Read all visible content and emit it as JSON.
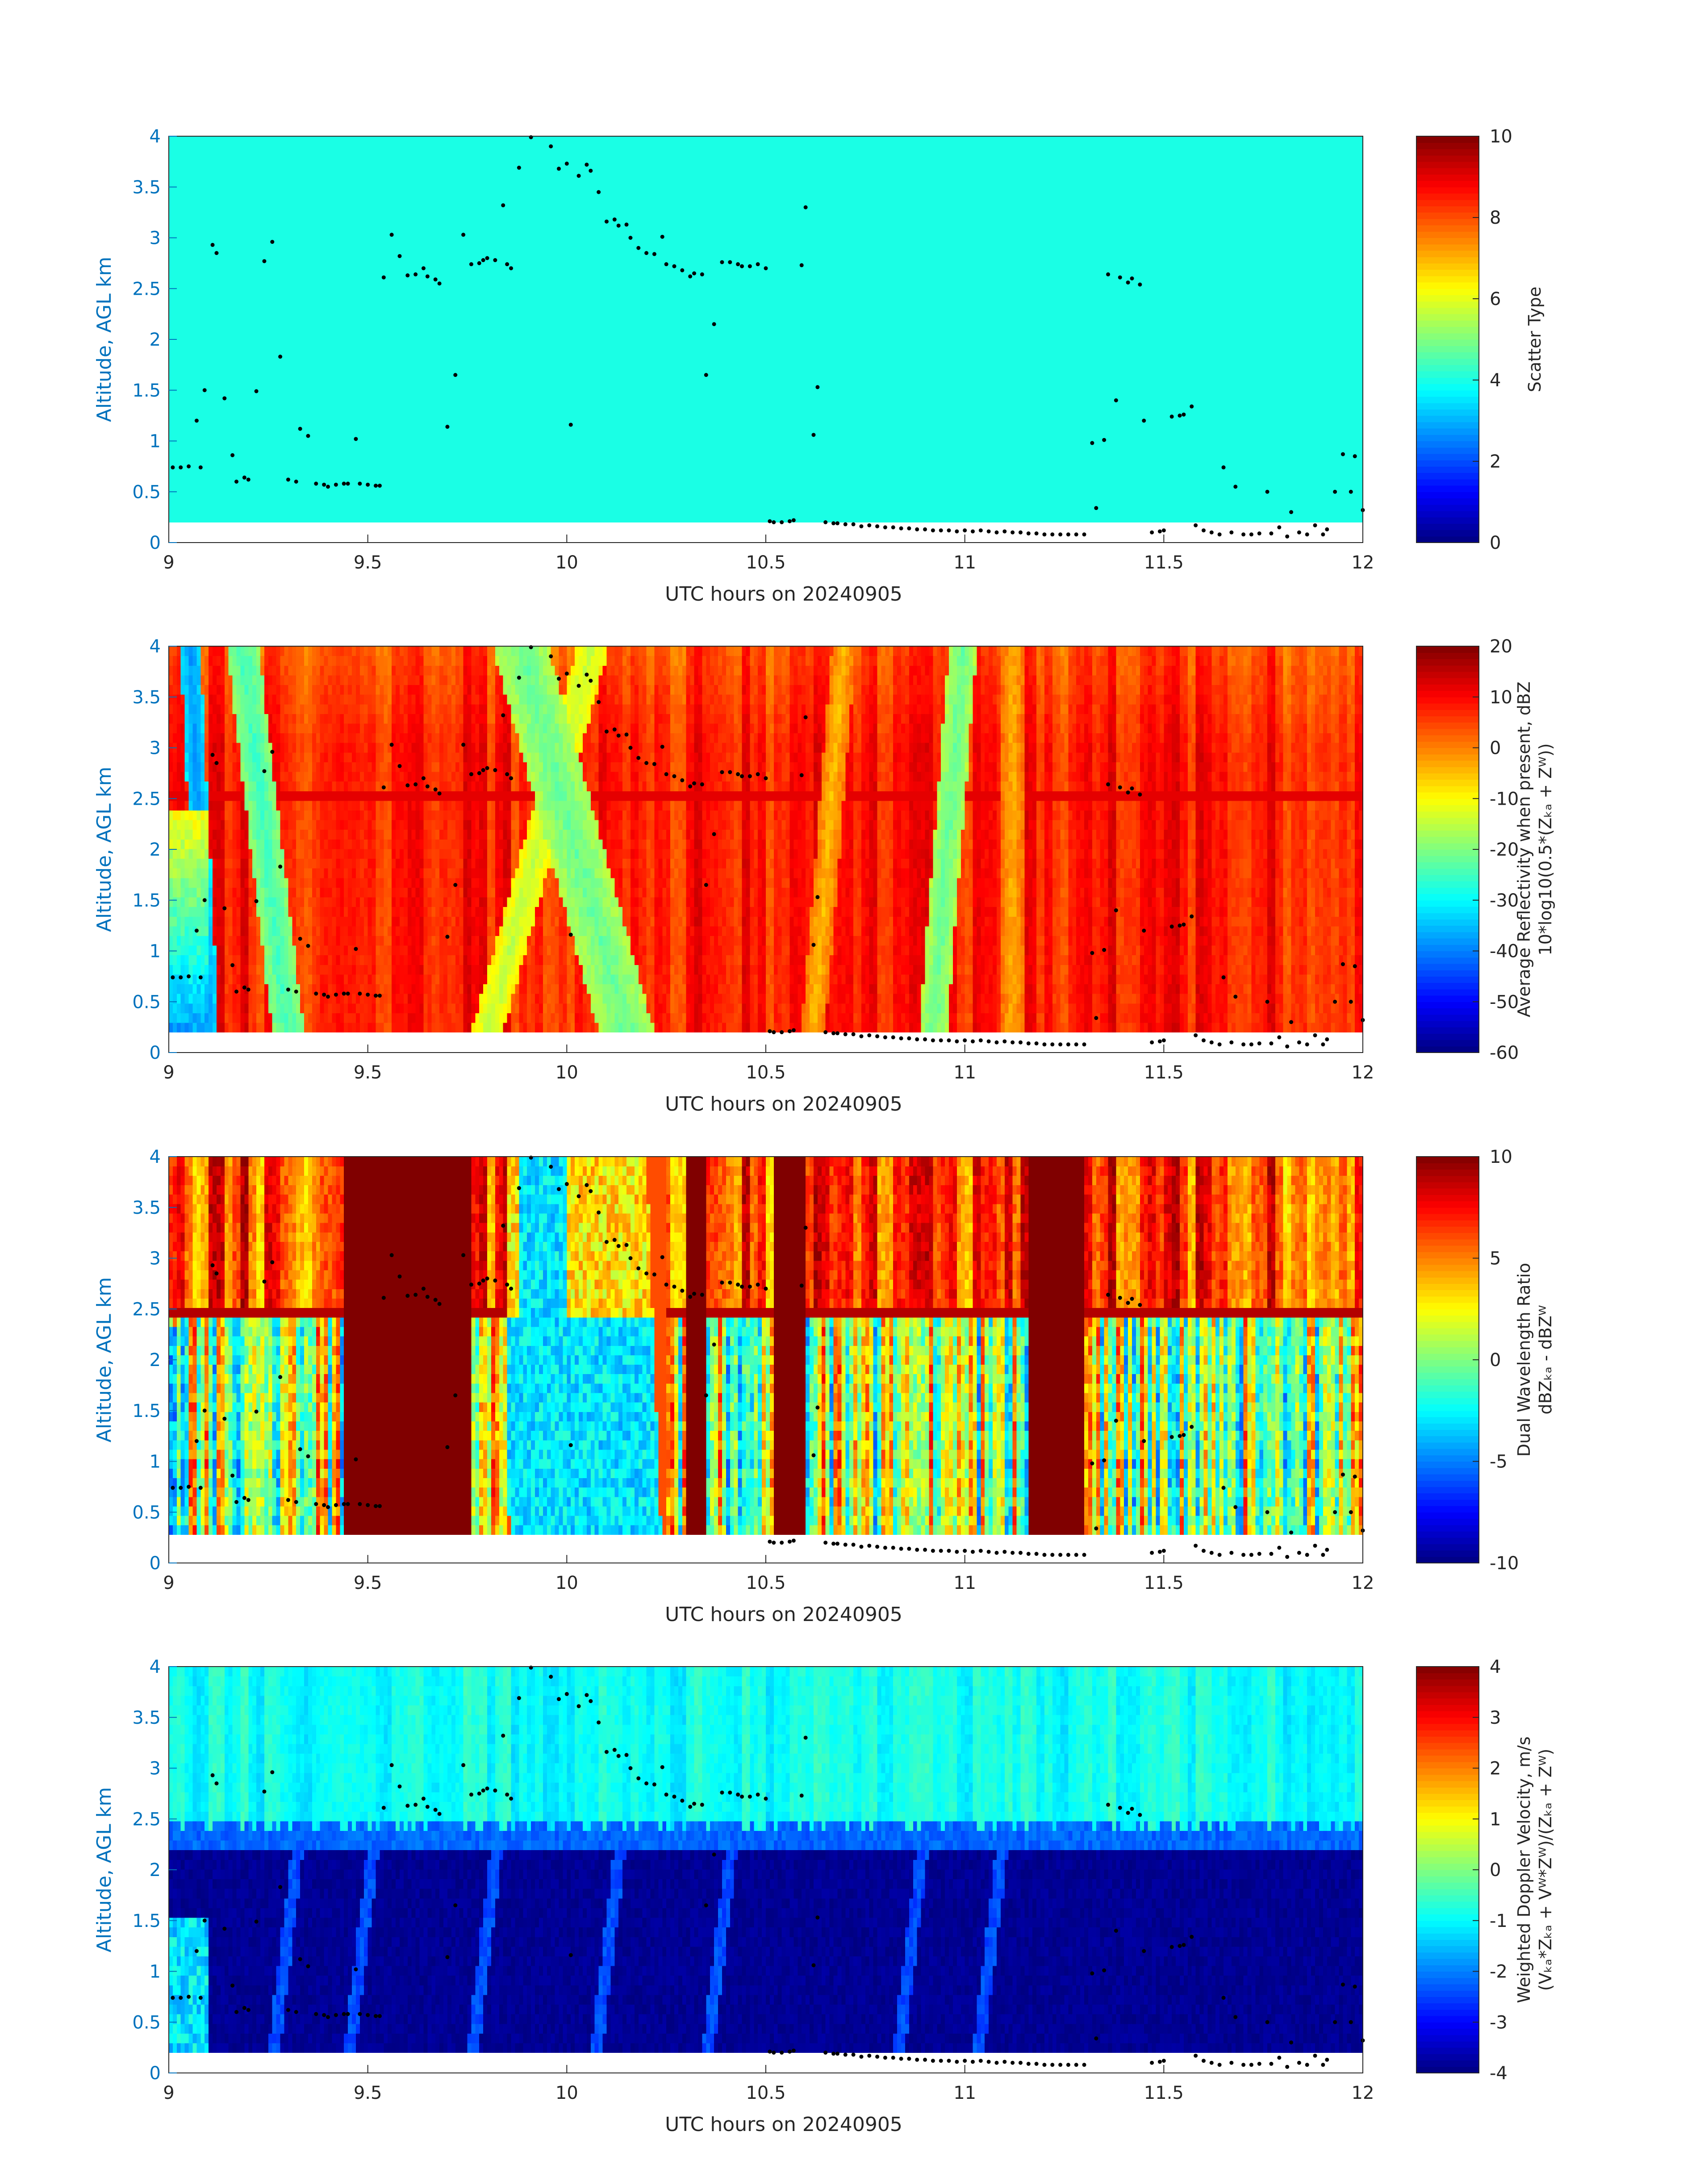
{
  "figure": {
    "background": "#ffffff",
    "ylabel_color": "#0072bd",
    "text_color": "#262626",
    "colormap": "jet"
  },
  "chart_data": [
    {
      "type": "heatmap",
      "panel": "scatter-type",
      "xlabel": "UTC hours on 20240905",
      "ylabel": "Altitude, AGL km",
      "xlim": [
        9,
        12
      ],
      "ylim": [
        0,
        4
      ],
      "xticks": [
        "9",
        "9.5",
        "10",
        "10.5",
        "11",
        "11.5",
        "12"
      ],
      "yticks": [
        "0",
        "0.5",
        "1",
        "1.5",
        "2",
        "2.5",
        "3",
        "3.5",
        "4"
      ],
      "colorbar": {
        "label_lines": [
          "Scatter Type"
        ],
        "clim": [
          0,
          10
        ],
        "ticks": [
          "0",
          "2",
          "4",
          "6",
          "8",
          "10"
        ]
      },
      "field": "scatter",
      "fill_value": 4.0,
      "data_bottom_km": 0.2
    },
    {
      "type": "heatmap",
      "panel": "reflectivity",
      "xlabel": "UTC hours on 20240905",
      "ylabel": "Altitude, AGL km",
      "xlim": [
        9,
        12
      ],
      "ylim": [
        0,
        4
      ],
      "xticks": [
        "9",
        "9.5",
        "10",
        "10.5",
        "11",
        "11.5",
        "12"
      ],
      "yticks": [
        "0",
        "0.5",
        "1",
        "1.5",
        "2",
        "2.5",
        "3",
        "3.5",
        "4"
      ],
      "colorbar": {
        "label_lines": [
          "Average Reflectivity when present, dBZ",
          "10*log10(0.5*(Zₖₐ + Zᵂ))"
        ],
        "clim": [
          -60,
          20
        ],
        "ticks": [
          "-60",
          "-50",
          "-40",
          "-30",
          "-20",
          "-10",
          "0",
          "10",
          "20"
        ]
      },
      "field": "reflectivity",
      "data_bottom_km": 0.2,
      "description_streaks": [
        {
          "x_base": 9.1,
          "slope_h_per_km": -0.012,
          "value": -38,
          "half_width_h": 0.025
        },
        {
          "x_base": 9.3,
          "slope_h_per_km": -0.03,
          "value": -25,
          "half_width_h": 0.04
        },
        {
          "x_base": 9.8,
          "slope_h_per_km": 0.07,
          "value": -15,
          "half_width_h": 0.04
        },
        {
          "x_base": 10.15,
          "slope_h_per_km": -0.07,
          "value": -22,
          "half_width_h": 0.07
        },
        {
          "x_base": 10.62,
          "slope_h_per_km": 0.02,
          "value": -5,
          "half_width_h": 0.03
        },
        {
          "x_base": 10.92,
          "slope_h_per_km": 0.02,
          "value": -22,
          "half_width_h": 0.035
        },
        {
          "x_base": 11.12,
          "slope_h_per_km": 0.0,
          "value": -4,
          "half_width_h": 0.03
        }
      ]
    },
    {
      "type": "heatmap",
      "panel": "dual-wavelength-ratio",
      "xlabel": "UTC hours on 20240905",
      "ylabel": "Altitude, AGL km",
      "xlim": [
        9,
        12
      ],
      "ylim": [
        0,
        4
      ],
      "xticks": [
        "9",
        "9.5",
        "10",
        "10.5",
        "11",
        "11.5",
        "12"
      ],
      "yticks": [
        "0",
        "0.5",
        "1",
        "1.5",
        "2",
        "2.5",
        "3",
        "3.5",
        "4"
      ],
      "colorbar": {
        "label_lines": [
          "Dual Wavelength Ratio",
          "dBZₖₐ - dBZᵂ"
        ],
        "clim": [
          -10,
          10
        ],
        "ticks": [
          "-10",
          "-5",
          "0",
          "5",
          "10"
        ]
      },
      "field": "dwr",
      "data_bottom_km": 0.28,
      "description_regions": [
        {
          "x_from": 9.44,
          "x_to": 9.76,
          "value": 10
        },
        {
          "x_from": 9.85,
          "x_to": 10.25,
          "value": -3
        },
        {
          "x_from": 10.3,
          "x_to": 10.35,
          "value": 10
        },
        {
          "x_from": 10.52,
          "x_to": 10.6,
          "value": 10
        },
        {
          "x_from": 11.16,
          "x_to": 11.3,
          "value": 10
        }
      ]
    },
    {
      "type": "heatmap",
      "panel": "doppler-velocity",
      "xlabel": "UTC hours on 20240905",
      "ylabel": "Altitude, AGL km",
      "xlim": [
        9,
        12
      ],
      "ylim": [
        0,
        4
      ],
      "xticks": [
        "9",
        "9.5",
        "10",
        "10.5",
        "11",
        "11.5",
        "12"
      ],
      "yticks": [
        "0",
        "0.5",
        "1",
        "1.5",
        "2",
        "2.5",
        "3",
        "3.5",
        "4"
      ],
      "colorbar": {
        "label_lines": [
          "Weighted Doppler Velocity, m/s",
          "(Vₖₐ*Zₖₐ + Vᵂ*Zᵂ)/(Zₖₐ + Zᵂ)"
        ],
        "clim": [
          -4,
          4
        ],
        "ticks": [
          "-4",
          "-3",
          "-2",
          "-1",
          "0",
          "1",
          "2",
          "3",
          "4"
        ]
      },
      "field": "velocity",
      "data_bottom_km": 0.2,
      "melting_layer_km": 2.45,
      "above_value": -0.9,
      "below_value": -4.0
    }
  ],
  "overlay_points": {
    "color": "#000000",
    "note_x_hours_y_km": true,
    "points": [
      [
        9.01,
        0.74
      ],
      [
        9.03,
        0.74
      ],
      [
        9.05,
        0.75
      ],
      [
        9.07,
        1.2
      ],
      [
        9.08,
        0.74
      ],
      [
        9.09,
        1.5
      ],
      [
        9.11,
        2.93
      ],
      [
        9.12,
        2.85
      ],
      [
        9.14,
        1.42
      ],
      [
        9.16,
        0.86
      ],
      [
        9.17,
        0.6
      ],
      [
        9.19,
        0.64
      ],
      [
        9.2,
        0.62
      ],
      [
        9.22,
        1.49
      ],
      [
        9.24,
        2.77
      ],
      [
        9.26,
        2.96
      ],
      [
        9.28,
        1.83
      ],
      [
        9.3,
        0.62
      ],
      [
        9.32,
        0.6
      ],
      [
        9.33,
        1.12
      ],
      [
        9.35,
        1.05
      ],
      [
        9.37,
        0.58
      ],
      [
        9.39,
        0.57
      ],
      [
        9.4,
        0.55
      ],
      [
        9.42,
        0.57
      ],
      [
        9.44,
        0.58
      ],
      [
        9.45,
        0.58
      ],
      [
        9.47,
        1.02
      ],
      [
        9.48,
        0.58
      ],
      [
        9.5,
        0.57
      ],
      [
        9.52,
        0.56
      ],
      [
        9.53,
        0.56
      ],
      [
        9.54,
        2.61
      ],
      [
        9.56,
        3.03
      ],
      [
        9.58,
        2.82
      ],
      [
        9.6,
        2.63
      ],
      [
        9.62,
        2.64
      ],
      [
        9.64,
        2.7
      ],
      [
        9.65,
        2.62
      ],
      [
        9.67,
        2.59
      ],
      [
        9.68,
        2.55
      ],
      [
        9.7,
        1.14
      ],
      [
        9.72,
        1.65
      ],
      [
        9.74,
        3.03
      ],
      [
        9.76,
        2.74
      ],
      [
        9.78,
        2.75
      ],
      [
        9.79,
        2.78
      ],
      [
        9.8,
        2.8
      ],
      [
        9.82,
        2.78
      ],
      [
        9.84,
        3.32
      ],
      [
        9.85,
        2.74
      ],
      [
        9.86,
        2.7
      ],
      [
        9.88,
        3.69
      ],
      [
        9.91,
        3.99
      ],
      [
        9.96,
        3.9
      ],
      [
        9.98,
        3.68
      ],
      [
        10,
        3.73
      ],
      [
        10.01,
        1.16
      ],
      [
        10.03,
        3.61
      ],
      [
        10.05,
        3.72
      ],
      [
        10.06,
        3.66
      ],
      [
        10.08,
        3.45
      ],
      [
        10.1,
        3.16
      ],
      [
        10.12,
        3.18
      ],
      [
        10.13,
        3.12
      ],
      [
        10.15,
        3.13
      ],
      [
        10.16,
        3.0
      ],
      [
        10.18,
        2.9
      ],
      [
        10.2,
        2.85
      ],
      [
        10.22,
        2.84
      ],
      [
        10.24,
        3.01
      ],
      [
        10.25,
        2.74
      ],
      [
        10.27,
        2.72
      ],
      [
        10.29,
        2.68
      ],
      [
        10.31,
        2.62
      ],
      [
        10.32,
        2.65
      ],
      [
        10.34,
        2.64
      ],
      [
        10.35,
        1.65
      ],
      [
        10.37,
        2.15
      ],
      [
        10.39,
        2.76
      ],
      [
        10.41,
        2.76
      ],
      [
        10.43,
        2.74
      ],
      [
        10.44,
        2.72
      ],
      [
        10.46,
        2.72
      ],
      [
        10.48,
        2.74
      ],
      [
        10.5,
        2.7
      ],
      [
        10.51,
        0.21
      ],
      [
        10.52,
        0.2
      ],
      [
        10.54,
        0.2
      ],
      [
        10.56,
        0.21
      ],
      [
        10.57,
        0.22
      ],
      [
        10.59,
        2.73
      ],
      [
        10.6,
        3.3
      ],
      [
        10.62,
        1.06
      ],
      [
        10.63,
        1.53
      ],
      [
        10.65,
        0.2
      ],
      [
        10.67,
        0.19
      ],
      [
        10.68,
        0.19
      ],
      [
        10.7,
        0.18
      ],
      [
        10.72,
        0.18
      ],
      [
        10.74,
        0.16
      ],
      [
        10.76,
        0.17
      ],
      [
        10.78,
        0.16
      ],
      [
        10.8,
        0.15
      ],
      [
        10.82,
        0.15
      ],
      [
        10.84,
        0.14
      ],
      [
        10.86,
        0.14
      ],
      [
        10.88,
        0.13
      ],
      [
        10.9,
        0.13
      ],
      [
        10.92,
        0.12
      ],
      [
        10.94,
        0.12
      ],
      [
        10.96,
        0.12
      ],
      [
        10.98,
        0.11
      ],
      [
        11,
        0.12
      ],
      [
        11.02,
        0.11
      ],
      [
        11.04,
        0.12
      ],
      [
        11.06,
        0.11
      ],
      [
        11.08,
        0.1
      ],
      [
        11.1,
        0.11
      ],
      [
        11.12,
        0.1
      ],
      [
        11.14,
        0.1
      ],
      [
        11.16,
        0.09
      ],
      [
        11.18,
        0.09
      ],
      [
        11.2,
        0.08
      ],
      [
        11.22,
        0.08
      ],
      [
        11.24,
        0.08
      ],
      [
        11.26,
        0.08
      ],
      [
        11.28,
        0.08
      ],
      [
        11.3,
        0.08
      ],
      [
        11.32,
        0.98
      ],
      [
        11.33,
        0.34
      ],
      [
        11.35,
        1.01
      ],
      [
        11.36,
        2.64
      ],
      [
        11.38,
        1.4
      ],
      [
        11.39,
        2.61
      ],
      [
        11.41,
        2.56
      ],
      [
        11.42,
        2.6
      ],
      [
        11.44,
        2.54
      ],
      [
        11.45,
        1.2
      ],
      [
        11.47,
        0.1
      ],
      [
        11.49,
        0.11
      ],
      [
        11.5,
        0.12
      ],
      [
        11.52,
        1.24
      ],
      [
        11.54,
        1.25
      ],
      [
        11.55,
        1.26
      ],
      [
        11.57,
        1.34
      ],
      [
        11.58,
        0.17
      ],
      [
        11.6,
        0.12
      ],
      [
        11.62,
        0.1
      ],
      [
        11.64,
        0.08
      ],
      [
        11.65,
        0.74
      ],
      [
        11.67,
        0.1
      ],
      [
        11.68,
        0.55
      ],
      [
        11.7,
        0.08
      ],
      [
        11.72,
        0.08
      ],
      [
        11.74,
        0.09
      ],
      [
        11.76,
        0.5
      ],
      [
        11.77,
        0.09
      ],
      [
        11.79,
        0.15
      ],
      [
        11.81,
        0.06
      ],
      [
        11.82,
        0.3
      ],
      [
        11.84,
        0.1
      ],
      [
        11.86,
        0.08
      ],
      [
        11.88,
        0.17
      ],
      [
        11.9,
        0.08
      ],
      [
        11.91,
        0.13
      ],
      [
        11.93,
        0.5
      ],
      [
        11.95,
        0.87
      ],
      [
        11.97,
        0.5
      ],
      [
        11.98,
        0.85
      ],
      [
        12,
        0.32
      ]
    ]
  }
}
